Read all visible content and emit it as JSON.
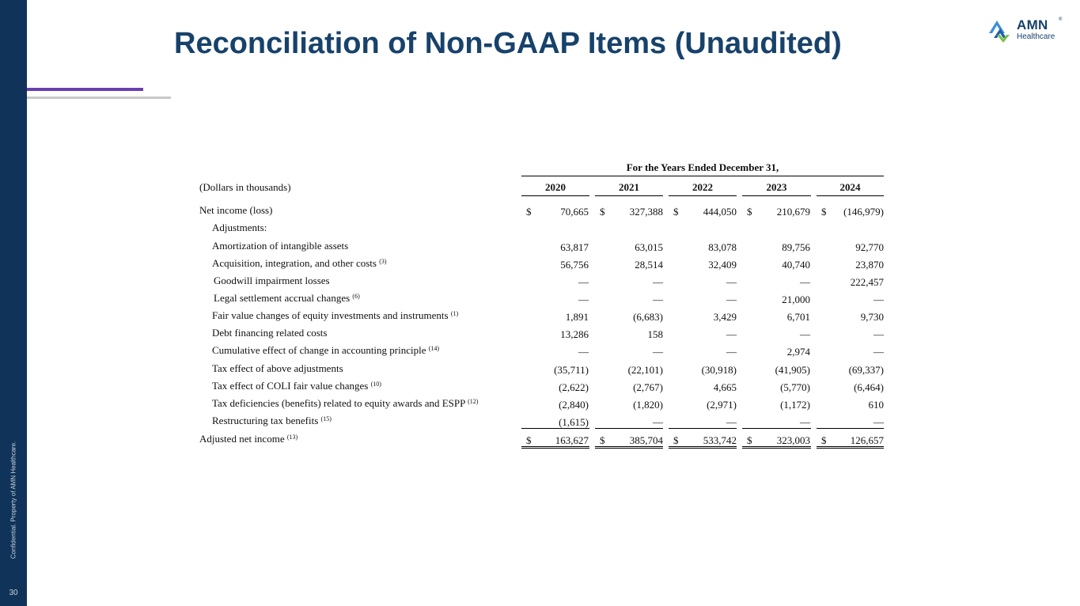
{
  "slide": {
    "title": "Reconciliation of Non-GAAP Items (Unaudited)",
    "confidential": "Confidential. Property of AMN Healthcare.",
    "page_number": "30",
    "logo": {
      "name": "AMN",
      "sub": "Healthcare",
      "reg": "®"
    },
    "colors": {
      "navy": "#0f3359",
      "title": "#17426b",
      "purple": "#6a3fb0",
      "logo_blue": "#3a8fd6",
      "logo_green": "#7cc04a"
    }
  },
  "table": {
    "period_header": "For the Years Ended December 31,",
    "units": "(Dollars in thousands)",
    "years": [
      "2020",
      "2021",
      "2022",
      "2023",
      "2024"
    ],
    "rows": [
      {
        "label": "Net income (loss)",
        "sup": "",
        "values": [
          "70,665",
          "327,388",
          "444,050",
          "210,679",
          "(146,979)"
        ],
        "dollar": "$"
      },
      {
        "label": "Adjustments:",
        "sup": "",
        "values": [
          "",
          "",
          "",
          "",
          ""
        ],
        "dollar": ""
      },
      {
        "label": "Amortization of intangible assets",
        "sup": "",
        "values": [
          "63,817",
          "63,015",
          "83,078",
          "89,756",
          "92,770"
        ],
        "dollar": ""
      },
      {
        "label": "Acquisition, integration, and other costs",
        "sup": "(3)",
        "values": [
          "56,756",
          "28,514",
          "32,409",
          "40,740",
          "23,870"
        ],
        "dollar": ""
      },
      {
        "label": "Goodwill impairment losses",
        "sup": "",
        "values": [
          "—",
          "—",
          "—",
          "—",
          "222,457"
        ],
        "dollar": ""
      },
      {
        "label": "Legal settlement accrual changes",
        "sup": "(6)",
        "values": [
          "—",
          "—",
          "—",
          "21,000",
          "—"
        ],
        "dollar": ""
      },
      {
        "label": "Fair value changes of equity investments and instruments",
        "sup": "(1)",
        "values": [
          "1,891",
          "(6,683)",
          "3,429",
          "6,701",
          "9,730"
        ],
        "dollar": ""
      },
      {
        "label": "Debt financing related costs",
        "sup": "",
        "values": [
          "13,286",
          "158",
          "—",
          "—",
          "—"
        ],
        "dollar": ""
      },
      {
        "label": "Cumulative effect of change in accounting principle",
        "sup": "(14)",
        "values": [
          "—",
          "—",
          "—",
          "2,974",
          "—"
        ],
        "dollar": ""
      },
      {
        "label": "Tax effect of above adjustments",
        "sup": "",
        "values": [
          "(35,711)",
          "(22,101)",
          "(30,918)",
          "(41,905)",
          "(69,337)"
        ],
        "dollar": ""
      },
      {
        "label": "Tax effect of COLI fair value changes",
        "sup": "(10)",
        "values": [
          "(2,622)",
          "(2,767)",
          "4,665",
          "(5,770)",
          "(6,464)"
        ],
        "dollar": ""
      },
      {
        "label": "Tax deficiencies (benefits) related to equity awards and ESPP",
        "sup": "(12)",
        "values": [
          "(2,840)",
          "(1,820)",
          "(2,971)",
          "(1,172)",
          "610"
        ],
        "dollar": ""
      },
      {
        "label": "Restructuring tax benefits",
        "sup": "(15)",
        "values": [
          "(1,615)",
          "—",
          "—",
          "—",
          "—"
        ],
        "dollar": ""
      },
      {
        "label": "Adjusted net income",
        "sup": "(13)",
        "values": [
          "163,627",
          "385,704",
          "533,742",
          "323,003",
          "126,657"
        ],
        "dollar": "$"
      }
    ]
  }
}
